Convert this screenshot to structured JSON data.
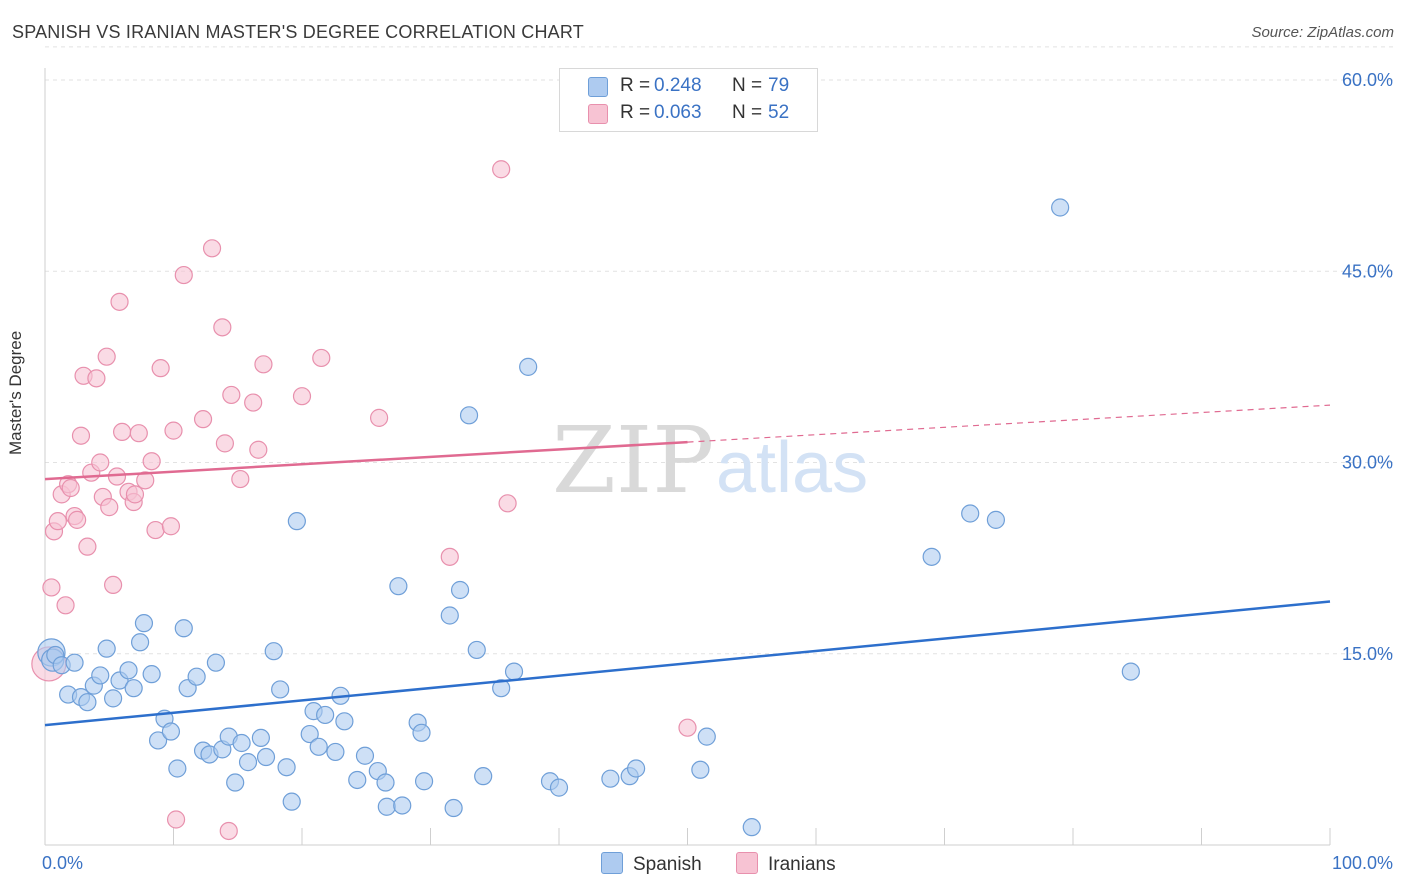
{
  "title": "SPANISH VS IRANIAN MASTER'S DEGREE CORRELATION CHART",
  "source": "Source: ZipAtlas.com",
  "watermark": {
    "zip": "ZIP",
    "atlas": "atlas"
  },
  "legend": {
    "r_label": "R =",
    "n_label": "N =",
    "rows": [
      {
        "r": "0.248",
        "n": "79"
      },
      {
        "r": "0.063",
        "n": "52"
      }
    ]
  },
  "colors": {
    "spanish_fill": "#aecbf0",
    "spanish_stroke": "#6f9fd8",
    "spanish_line": "#2d6fcc",
    "iranian_fill": "#f7c3d3",
    "iranian_stroke": "#e890ad",
    "iranian_line": "#e06a91",
    "tick_label": "#3a72c4"
  },
  "chart_data": {
    "type": "scatter",
    "title": "SPANISH VS IRANIAN MASTER'S DEGREE CORRELATION CHART",
    "xlabel": "",
    "ylabel": "Master's Degree",
    "xlim": [
      0,
      100
    ],
    "ylim": [
      0,
      62.6
    ],
    "x_tick_labels": [
      "0.0%",
      "100.0%"
    ],
    "y_ticks": [
      15,
      30,
      45,
      60
    ],
    "y_tick_labels": [
      "15.0%",
      "30.0%",
      "45.0%",
      "60.0%"
    ],
    "grid": true,
    "legend_position": "top-center",
    "series": [
      {
        "name": "Spanish",
        "r": 0.248,
        "n": 79,
        "trend": {
          "x": [
            0,
            100
          ],
          "y": [
            9.4,
            19.1
          ]
        },
        "points": [
          [
            0.5,
            15.1,
            1.6
          ],
          [
            0.6,
            14.5,
            1.3
          ],
          [
            0.8,
            14.9,
            1.0
          ],
          [
            1.3,
            14.1,
            1.0
          ],
          [
            1.8,
            11.8,
            1.0
          ],
          [
            2.3,
            14.3,
            1.0
          ],
          [
            2.8,
            11.6,
            1.0
          ],
          [
            3.3,
            11.2,
            1.0
          ],
          [
            3.8,
            12.5,
            1.0
          ],
          [
            4.3,
            13.3,
            1.0
          ],
          [
            4.8,
            15.4,
            1.0
          ],
          [
            5.3,
            11.5,
            1.0
          ],
          [
            5.8,
            12.9,
            1.0
          ],
          [
            6.5,
            13.7,
            1.0
          ],
          [
            6.9,
            12.3,
            1.0
          ],
          [
            7.4,
            15.9,
            1.0
          ],
          [
            7.7,
            17.4,
            1.0
          ],
          [
            8.3,
            13.4,
            1.0
          ],
          [
            8.8,
            8.2,
            1.0
          ],
          [
            9.3,
            9.9,
            1.0
          ],
          [
            9.8,
            8.9,
            1.0
          ],
          [
            10.3,
            6.0,
            1.0
          ],
          [
            10.8,
            17.0,
            1.0
          ],
          [
            11.1,
            12.3,
            1.0
          ],
          [
            11.8,
            13.2,
            1.0
          ],
          [
            12.3,
            7.4,
            1.0
          ],
          [
            12.8,
            7.1,
            1.0
          ],
          [
            13.3,
            14.3,
            1.0
          ],
          [
            13.8,
            7.5,
            1.0
          ],
          [
            14.3,
            8.5,
            1.0
          ],
          [
            14.8,
            4.9,
            1.0
          ],
          [
            15.3,
            8.0,
            1.0
          ],
          [
            15.8,
            6.5,
            1.0
          ],
          [
            16.8,
            8.4,
            1.0
          ],
          [
            17.2,
            6.9,
            1.0
          ],
          [
            17.8,
            15.2,
            1.0
          ],
          [
            18.3,
            12.2,
            1.0
          ],
          [
            18.8,
            6.1,
            1.0
          ],
          [
            19.2,
            3.4,
            1.0
          ],
          [
            19.6,
            25.4,
            1.0
          ],
          [
            20.6,
            8.7,
            1.0
          ],
          [
            20.9,
            10.5,
            1.0
          ],
          [
            21.3,
            7.7,
            1.0
          ],
          [
            21.8,
            10.2,
            1.0
          ],
          [
            22.6,
            7.3,
            1.0
          ],
          [
            23.0,
            11.7,
            1.0
          ],
          [
            23.3,
            9.7,
            1.0
          ],
          [
            24.3,
            5.1,
            1.0
          ],
          [
            24.9,
            7.0,
            1.0
          ],
          [
            25.9,
            5.8,
            1.0
          ],
          [
            26.5,
            4.9,
            1.0
          ],
          [
            26.6,
            3.0,
            1.0
          ],
          [
            27.5,
            20.3,
            1.0
          ],
          [
            27.8,
            3.1,
            1.0
          ],
          [
            29.0,
            9.6,
            1.0
          ],
          [
            29.3,
            8.8,
            1.0
          ],
          [
            29.5,
            5.0,
            1.0
          ],
          [
            31.5,
            18.0,
            1.0
          ],
          [
            31.8,
            2.9,
            1.0
          ],
          [
            32.3,
            20.0,
            1.0
          ],
          [
            33.0,
            33.7,
            1.0
          ],
          [
            33.6,
            15.3,
            1.0
          ],
          [
            34.1,
            5.4,
            1.0
          ],
          [
            35.5,
            12.3,
            1.0
          ],
          [
            36.5,
            13.6,
            1.0
          ],
          [
            37.6,
            37.5,
            1.0
          ],
          [
            39.3,
            5.0,
            1.0
          ],
          [
            40.0,
            4.5,
            1.0
          ],
          [
            44.0,
            5.2,
            1.0
          ],
          [
            45.5,
            5.4,
            1.0
          ],
          [
            46.0,
            6.0,
            1.0
          ],
          [
            51.0,
            5.9,
            1.0
          ],
          [
            51.5,
            8.5,
            1.0
          ],
          [
            55.0,
            1.4,
            1.0
          ],
          [
            69.0,
            22.6,
            1.0
          ],
          [
            72.0,
            26.0,
            1.0
          ],
          [
            74.0,
            25.5,
            1.0
          ],
          [
            79.0,
            50.0,
            1.0
          ],
          [
            84.5,
            13.6,
            1.0
          ]
        ]
      },
      {
        "name": "Iranians",
        "r": 0.063,
        "n": 52,
        "trend": {
          "x": [
            0,
            100
          ],
          "y": [
            28.7,
            34.5
          ]
        },
        "trend_solid_until_x": 50,
        "points": [
          [
            0.3,
            14.2,
            2.0
          ],
          [
            0.5,
            20.2,
            1.0
          ],
          [
            0.7,
            24.6,
            1.0
          ],
          [
            1.0,
            25.4,
            1.0
          ],
          [
            1.3,
            27.5,
            1.0
          ],
          [
            1.6,
            18.8,
            1.0
          ],
          [
            1.8,
            28.3,
            1.0
          ],
          [
            2.0,
            28.0,
            1.0
          ],
          [
            2.3,
            25.8,
            1.0
          ],
          [
            2.5,
            25.5,
            1.0
          ],
          [
            2.8,
            32.1,
            1.0
          ],
          [
            3.0,
            36.8,
            1.0
          ],
          [
            3.3,
            23.4,
            1.0
          ],
          [
            3.6,
            29.2,
            1.0
          ],
          [
            4.0,
            36.6,
            1.0
          ],
          [
            4.3,
            30.0,
            1.0
          ],
          [
            4.5,
            27.3,
            1.0
          ],
          [
            4.8,
            38.3,
            1.0
          ],
          [
            5.0,
            26.5,
            1.0
          ],
          [
            5.3,
            20.4,
            1.0
          ],
          [
            5.6,
            28.9,
            1.0
          ],
          [
            5.8,
            42.6,
            1.0
          ],
          [
            6.0,
            32.4,
            1.0
          ],
          [
            6.5,
            27.7,
            1.0
          ],
          [
            6.9,
            26.9,
            1.0
          ],
          [
            7.0,
            27.5,
            1.0
          ],
          [
            7.3,
            32.3,
            1.0
          ],
          [
            7.8,
            28.6,
            1.0
          ],
          [
            8.3,
            30.1,
            1.0
          ],
          [
            8.6,
            24.7,
            1.0
          ],
          [
            9.0,
            37.4,
            1.0
          ],
          [
            9.8,
            25.0,
            1.0
          ],
          [
            10.0,
            32.5,
            1.0
          ],
          [
            10.2,
            2.0,
            1.0
          ],
          [
            10.8,
            44.7,
            1.0
          ],
          [
            12.3,
            33.4,
            1.0
          ],
          [
            13.0,
            46.8,
            1.0
          ],
          [
            13.8,
            40.6,
            1.0
          ],
          [
            14.0,
            31.5,
            1.0
          ],
          [
            14.3,
            1.1,
            1.0
          ],
          [
            14.5,
            35.3,
            1.0
          ],
          [
            15.2,
            28.7,
            1.0
          ],
          [
            16.2,
            34.7,
            1.0
          ],
          [
            16.6,
            31.0,
            1.0
          ],
          [
            17.0,
            37.7,
            1.0
          ],
          [
            20.0,
            35.2,
            1.0
          ],
          [
            21.5,
            38.2,
            1.0
          ],
          [
            26.0,
            33.5,
            1.0
          ],
          [
            31.5,
            22.6,
            1.0
          ],
          [
            35.5,
            53.0,
            1.0
          ],
          [
            36.0,
            26.8,
            1.0
          ],
          [
            50.0,
            9.2,
            1.0
          ]
        ]
      }
    ]
  }
}
